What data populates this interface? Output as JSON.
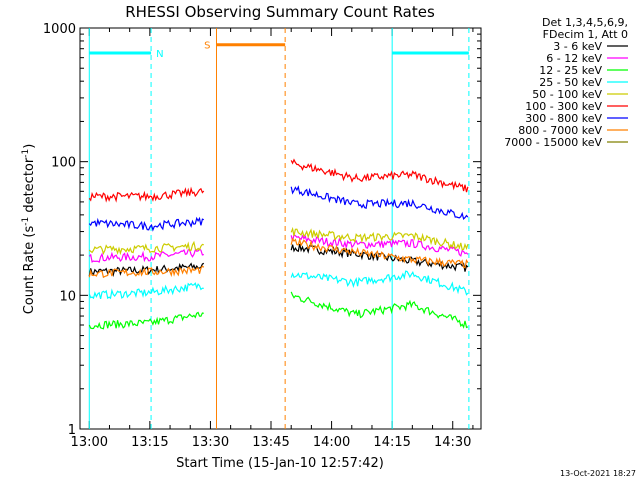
{
  "chart_data": {
    "type": "line",
    "title": "RHESSI Observing Summary Count Rates",
    "xlabel": "Start Time (15-Jan-10 12:57:42)",
    "ylabel_main": "Count Rate (s",
    "ylabel_sup1": "-1",
    "ylabel_mid": " detector",
    "ylabel_sup2": "-1",
    "ylabel_end": ")",
    "yscale": "log",
    "ylim": [
      1,
      1000
    ],
    "xlim_min": [
      -2.3,
      97
    ],
    "x_ticks": [
      {
        "value": 0,
        "label": "13:00"
      },
      {
        "value": 15,
        "label": "13:15"
      },
      {
        "value": 30,
        "label": "13:30"
      },
      {
        "value": 45,
        "label": "13:45"
      },
      {
        "value": 60,
        "label": "14:00"
      },
      {
        "value": 75,
        "label": "14:15"
      },
      {
        "value": 90,
        "label": "14:30"
      }
    ],
    "y_ticks": [
      {
        "value": 1,
        "label": "1"
      },
      {
        "value": 10,
        "label": "10"
      },
      {
        "value": 100,
        "label": "100"
      },
      {
        "value": 1000,
        "label": "1000"
      }
    ],
    "legend_header": [
      "Det 1,3,4,5,6,9,",
      "FDecim 1, Att 0"
    ],
    "series": [
      {
        "name": "3 - 6 keV",
        "color": "#000000",
        "v1": [
          15,
          15.5,
          16.5
        ],
        "v2": [
          23,
          20.5,
          18,
          16
        ]
      },
      {
        "name": "6 - 12 keV",
        "color": "#ff00ff",
        "v1": [
          19,
          19.5,
          21
        ],
        "v2": [
          27,
          24,
          24.5,
          20.5
        ]
      },
      {
        "name": "12 - 25 keV",
        "color": "#00ff00",
        "v1": [
          6,
          6.2,
          7.3
        ],
        "v2": [
          10,
          7.2,
          8.5,
          6
        ]
      },
      {
        "name": "25 - 50 keV",
        "color": "#00ffff",
        "v1": [
          10,
          10.5,
          12
        ],
        "v2": [
          14.5,
          12.5,
          14.5,
          10.5
        ]
      },
      {
        "name": "50 - 100 keV",
        "color": "#cccc00",
        "v1": [
          22,
          22.5,
          23.5
        ],
        "v2": [
          30,
          27,
          28,
          22.5
        ]
      },
      {
        "name": "100 - 300 keV",
        "color": "#ff0000",
        "v1": [
          55,
          55,
          60
        ],
        "v2": [
          98,
          75,
          80,
          62
        ]
      },
      {
        "name": "300 - 800 keV",
        "color": "#0000ff",
        "v1": [
          35,
          33,
          36
        ],
        "v2": [
          63,
          48,
          49,
          38
        ]
      },
      {
        "name": "800 - 7000 keV",
        "color": "#ff8000",
        "v1": [
          14.5,
          15,
          15.5
        ],
        "v2": [
          25,
          21,
          18.5,
          17
        ]
      },
      {
        "name": "7000 - 15000 keV",
        "color": "#808000",
        "v1": [],
        "v2": []
      }
    ],
    "segment1_x": [
      0,
      15,
      28.5
    ],
    "segment2_x": [
      50,
      66,
      80,
      94
    ],
    "night_intervals": [
      {
        "label": "N",
        "start": 0,
        "end": 15.3,
        "y": 650,
        "color": "#00ffff"
      },
      {
        "label": "",
        "start": 75,
        "end": 94,
        "y": 650,
        "color": "#00ffff"
      }
    ],
    "saa_intervals": [
      {
        "label": "S",
        "start": 31.5,
        "end": 48.5,
        "y": 750,
        "color": "#ff8000"
      }
    ],
    "footer_date": "13-Oct-2021 18:27"
  }
}
